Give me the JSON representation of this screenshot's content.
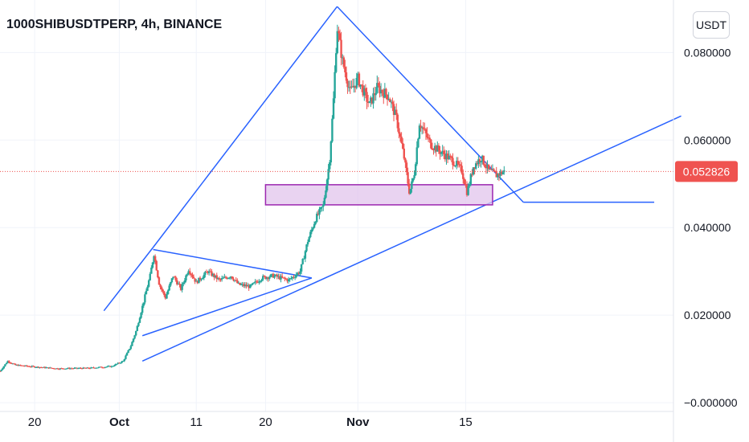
{
  "header": {
    "symbol_line": "1000SHIBUSDTPERP, 4h, BINANCE",
    "currency_button": "USDT"
  },
  "colors": {
    "up": "#26a69a",
    "down": "#ef5350",
    "trendline": "#2962ff",
    "zone_fill": "#e1c4ec",
    "zone_border": "#9c27b0",
    "price_line": "#ef5350",
    "grid": "#f0f3fa"
  },
  "chart_data": {
    "type": "candlestick",
    "symbol": "1000SHIBUSDTPERP",
    "interval": "4h",
    "exchange": "BINANCE",
    "y_axis_ticks": [
      "0.080000",
      "0.060000",
      "0.040000",
      "0.020000",
      "−0.000000"
    ],
    "y_tick_values": [
      0.08,
      0.06,
      0.04,
      0.02,
      0.0
    ],
    "x_axis_ticks": [
      {
        "label": "20",
        "day": -11,
        "bold": false
      },
      {
        "label": "Oct",
        "day": 0,
        "bold": true
      },
      {
        "label": "11",
        "day": 10,
        "bold": false
      },
      {
        "label": "20",
        "day": 19,
        "bold": false
      },
      {
        "label": "Nov",
        "day": 31,
        "bold": true
      },
      {
        "label": "15",
        "day": 45,
        "bold": false
      }
    ],
    "ylim": [
      -0.002,
      0.092
    ],
    "xlim": [
      -15.5,
      72
    ],
    "last_price": "0.052826",
    "last_price_value": 0.052826,
    "grid": true,
    "price_path": [
      [
        -15.5,
        0.0072
      ],
      [
        -14.5,
        0.0095
      ],
      [
        -13.5,
        0.0086
      ],
      [
        -11,
        0.0082
      ],
      [
        -8,
        0.0078
      ],
      [
        -4,
        0.0079
      ],
      [
        -1,
        0.0083
      ],
      [
        0.5,
        0.0095
      ],
      [
        1.5,
        0.013
      ],
      [
        2.2,
        0.0165
      ],
      [
        3,
        0.022
      ],
      [
        4,
        0.029
      ],
      [
        4.5,
        0.034
      ],
      [
        5.2,
        0.027
      ],
      [
        6,
        0.024
      ],
      [
        7,
        0.029
      ],
      [
        8,
        0.026
      ],
      [
        9,
        0.0305
      ],
      [
        10,
        0.0275
      ],
      [
        11.5,
        0.03
      ],
      [
        13,
        0.028
      ],
      [
        14.5,
        0.029
      ],
      [
        15.5,
        0.027
      ],
      [
        17,
        0.0265
      ],
      [
        18.5,
        0.0285
      ],
      [
        20,
        0.029
      ],
      [
        22,
        0.028
      ],
      [
        23.5,
        0.03
      ],
      [
        24.5,
        0.037
      ],
      [
        25.5,
        0.042
      ],
      [
        26.5,
        0.045
      ],
      [
        27.3,
        0.055
      ],
      [
        27.8,
        0.068
      ],
      [
        28.3,
        0.086
      ],
      [
        29,
        0.078
      ],
      [
        30,
        0.071
      ],
      [
        31,
        0.074
      ],
      [
        32.5,
        0.068
      ],
      [
        33.5,
        0.072
      ],
      [
        35,
        0.07
      ],
      [
        36,
        0.065
      ],
      [
        37,
        0.056
      ],
      [
        37.7,
        0.048
      ],
      [
        38.3,
        0.052
      ],
      [
        39,
        0.064
      ],
      [
        40.5,
        0.059
      ],
      [
        42,
        0.057
      ],
      [
        43.5,
        0.055
      ],
      [
        44.5,
        0.053
      ],
      [
        45.2,
        0.048
      ],
      [
        46,
        0.054
      ],
      [
        47,
        0.056
      ],
      [
        48,
        0.053
      ],
      [
        49,
        0.052
      ],
      [
        50,
        0.0528
      ]
    ],
    "drawings": [
      {
        "type": "trendline",
        "points": [
          [
            -2,
            0.021
          ],
          [
            4.4,
            0.0355
          ]
        ]
      },
      {
        "type": "trendline",
        "points": [
          [
            4.4,
            0.0355
          ],
          [
            28.3,
            0.0905
          ]
        ]
      },
      {
        "type": "trendline",
        "points": [
          [
            28.3,
            0.0905
          ],
          [
            52.5,
            0.0458
          ]
        ]
      },
      {
        "type": "trendline",
        "points": [
          [
            52.5,
            0.0458
          ],
          [
            69.5,
            0.0458
          ]
        ]
      },
      {
        "type": "trendline",
        "points": [
          [
            3,
            0.0095
          ],
          [
            73,
            0.0655
          ]
        ]
      },
      {
        "type": "trendline",
        "points": [
          [
            4.4,
            0.035
          ],
          [
            25.0,
            0.0285
          ]
        ]
      },
      {
        "type": "trendline",
        "points": [
          [
            3,
            0.0153
          ],
          [
            25.0,
            0.0285
          ]
        ]
      },
      {
        "type": "rectangle",
        "x": [
          19,
          48.5
        ],
        "y": [
          0.0452,
          0.0498
        ]
      }
    ]
  }
}
